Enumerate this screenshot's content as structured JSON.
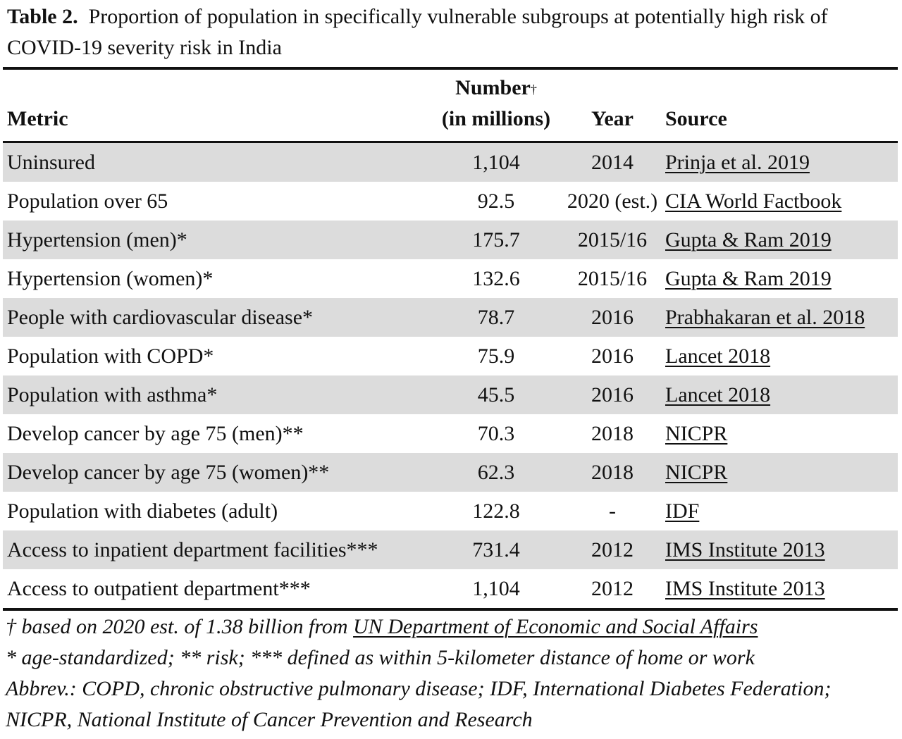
{
  "caption": {
    "label": "Table 2.",
    "text": "Proportion of population in specifically vulnerable subgroups at potentially high risk of COVID-19 severity risk in India"
  },
  "table": {
    "headers": {
      "metric": "Metric",
      "number_line1": "Number",
      "number_dagger": "†",
      "number_line2": "(in millions)",
      "year": "Year",
      "source": "Source"
    },
    "rows": [
      {
        "metric": "Uninsured",
        "number": "1,104",
        "year": "2014",
        "source": "Prinja et al. 2019",
        "shaded": true
      },
      {
        "metric": "Population over 65",
        "number": "92.5",
        "year": "2020 (est.)",
        "source": "CIA World Factbook",
        "shaded": false
      },
      {
        "metric": "Hypertension (men)*",
        "number": "175.7",
        "year": "2015/16",
        "source": "Gupta & Ram 2019",
        "shaded": true
      },
      {
        "metric": "Hypertension (women)*",
        "number": "132.6",
        "year": "2015/16",
        "source": "Gupta & Ram 2019",
        "shaded": false
      },
      {
        "metric": "People with cardiovascular disease*",
        "number": "78.7",
        "year": "2016",
        "source": "Prabhakaran et al. 2018",
        "shaded": true
      },
      {
        "metric": "Population with COPD*",
        "number": "75.9",
        "year": "2016",
        "source": "Lancet 2018",
        "shaded": false
      },
      {
        "metric": "Population with asthma*",
        "number": "45.5",
        "year": "2016",
        "source": "Lancet 2018",
        "shaded": true
      },
      {
        "metric": "Develop cancer by age 75 (men)**",
        "number": "70.3",
        "year": "2018",
        "source": "NICPR",
        "shaded": false
      },
      {
        "metric": "Develop cancer by age 75 (women)**",
        "number": "62.3",
        "year": "2018",
        "source": "NICPR",
        "shaded": true
      },
      {
        "metric": "Population with diabetes (adult)",
        "number": "122.8",
        "year": "-",
        "source": "IDF",
        "shaded": false
      },
      {
        "metric": "Access to inpatient department facilities***",
        "number": "731.4",
        "year": "2012",
        "source": "IMS Institute 2013",
        "shaded": true
      },
      {
        "metric": "Access to outpatient department***",
        "number": "1,104",
        "year": "2012",
        "source": "IMS Institute 2013",
        "shaded": false
      }
    ]
  },
  "notes": {
    "dagger": "†",
    "dagger_text": " based on 2020 est. of 1.38 billion from ",
    "dagger_link": "UN Department of Economic and Social Affairs",
    "asterisks": "* age-standardized; ** risk; *** defined as within 5-kilometer distance of home or work",
    "abbrev": "Abbrev.: COPD, chronic obstructive pulmonary disease; IDF, International Diabetes Federation; NICPR, National Institute of Cancer Prevention and Research"
  }
}
